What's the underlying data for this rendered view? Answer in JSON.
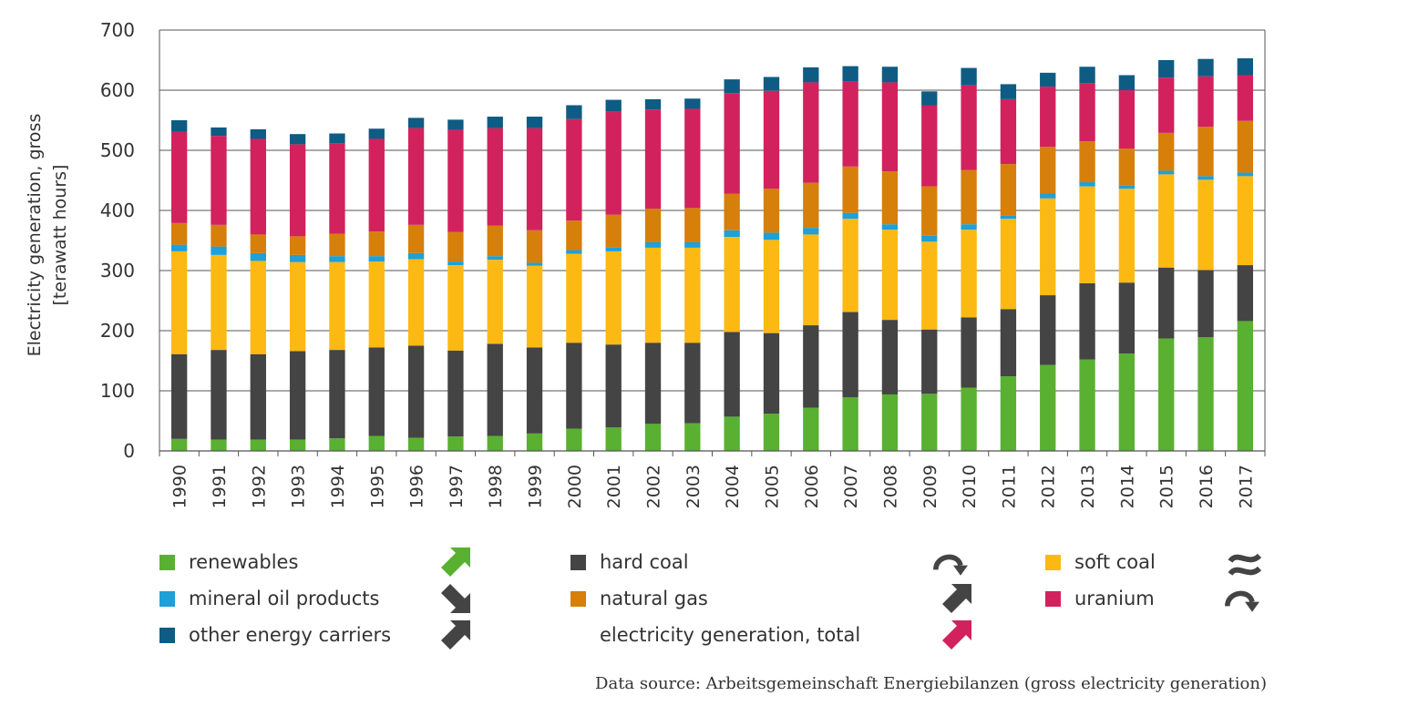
{
  "chart_data": {
    "type": "bar",
    "stacked": true,
    "ylabel_lines": [
      "Electricity generation, gross",
      "[terawatt hours]"
    ],
    "ylim": [
      0,
      700
    ],
    "yticks": [
      0,
      100,
      200,
      300,
      400,
      500,
      600,
      700
    ],
    "grid": true,
    "categories": [
      "1990",
      "1991",
      "1992",
      "1993",
      "1994",
      "1995",
      "1996",
      "1997",
      "1998",
      "1999",
      "2000",
      "2001",
      "2002",
      "2003",
      "2004",
      "2005",
      "2006",
      "2007",
      "2008",
      "2009",
      "2010",
      "2011",
      "2012",
      "2013",
      "2014",
      "2015",
      "2016",
      "2017"
    ],
    "series": [
      {
        "name": "renewables",
        "color": "#5ab031",
        "values": [
          20,
          19,
          19,
          19,
          21,
          25,
          22,
          24,
          25,
          29,
          37,
          39,
          45,
          46,
          57,
          62,
          72,
          89,
          94,
          95,
          105,
          124,
          143,
          152,
          162,
          187,
          189,
          216
        ]
      },
      {
        "name": "hard coal",
        "color": "#444444",
        "values": [
          141,
          149,
          142,
          147,
          147,
          147,
          153,
          143,
          153,
          143,
          143,
          138,
          135,
          134,
          141,
          134,
          137,
          142,
          124,
          107,
          117,
          112,
          116,
          127,
          118,
          118,
          112,
          93
        ]
      },
      {
        "name": "soft coal",
        "color": "#fdb913",
        "values": [
          171,
          158,
          155,
          148,
          146,
          143,
          144,
          142,
          140,
          136,
          148,
          155,
          158,
          158,
          158,
          155,
          151,
          155,
          150,
          146,
          146,
          150,
          161,
          161,
          156,
          155,
          150,
          148
        ]
      },
      {
        "name": "mineral oil products",
        "color": "#1ea0d9",
        "values": [
          11,
          14,
          13,
          12,
          10,
          9,
          10,
          6,
          6,
          5,
          6,
          6,
          9,
          9,
          11,
          12,
          11,
          10,
          9,
          10,
          9,
          6,
          8,
          7,
          6,
          6,
          6,
          6
        ]
      },
      {
        "name": "natural gas",
        "color": "#d67f0a",
        "values": [
          36,
          36,
          31,
          31,
          37,
          41,
          47,
          49,
          51,
          54,
          49,
          55,
          56,
          57,
          61,
          73,
          75,
          77,
          88,
          82,
          90,
          85,
          78,
          68,
          61,
          63,
          82,
          86
        ]
      },
      {
        "name": "uranium",
        "color": "#d2225e",
        "values": [
          152,
          148,
          159,
          153,
          151,
          154,
          161,
          170,
          162,
          170,
          169,
          171,
          165,
          165,
          167,
          163,
          167,
          141,
          148,
          135,
          141,
          108,
          100,
          97,
          97,
          92,
          84,
          76
        ]
      },
      {
        "name": "other energy carriers",
        "color": "#0e5c84",
        "values": [
          19,
          14,
          16,
          17,
          16,
          17,
          17,
          17,
          19,
          19,
          23,
          20,
          17,
          17,
          23,
          23,
          25,
          26,
          26,
          23,
          29,
          25,
          23,
          27,
          25,
          29,
          29,
          28
        ]
      }
    ],
    "totals_label": "electricity generation, total"
  },
  "legend": {
    "items": [
      {
        "label": "renewables",
        "color": "#5ab031",
        "trend": "up-arrow",
        "trend_color": "#5ab031"
      },
      {
        "label": "hard coal",
        "color": "#444444",
        "trend": "curved-down-arrow",
        "trend_color": "#444444"
      },
      {
        "label": "soft coal",
        "color": "#fdb913",
        "trend": "tilde",
        "trend_color": "#444444"
      },
      {
        "label": "mineral oil products",
        "color": "#1ea0d9",
        "trend": "down-arrow",
        "trend_color": "#444444"
      },
      {
        "label": "natural gas",
        "color": "#d67f0a",
        "trend": "up-arrow",
        "trend_color": "#444444"
      },
      {
        "label": "uranium",
        "color": "#d2225e",
        "trend": "curved-down-arrow",
        "trend_color": "#444444"
      },
      {
        "label": "other energy carriers",
        "color": "#0e5c84",
        "trend": "up-arrow",
        "trend_color": "#444444"
      },
      {
        "label": "electricity generation, total",
        "color": "",
        "trend": "up-arrow",
        "trend_color": "#d2225e"
      }
    ]
  },
  "source": "Data source: Arbeitsgemeinschaft Energiebilanzen (gross electricity generation)"
}
